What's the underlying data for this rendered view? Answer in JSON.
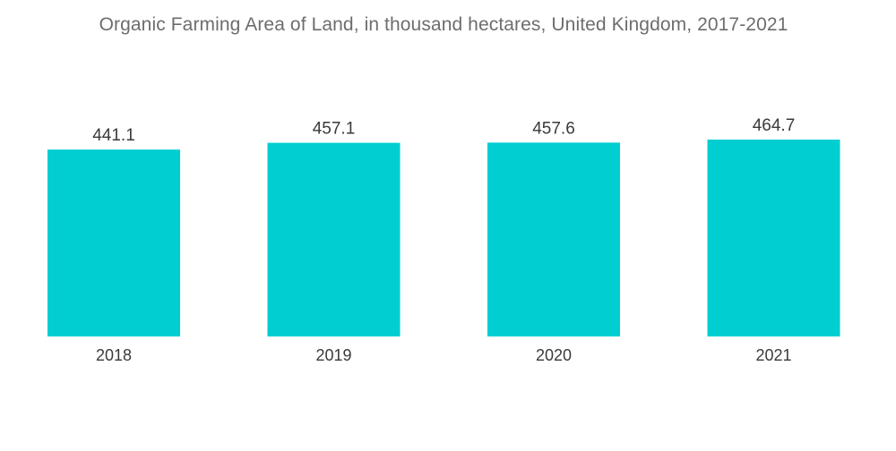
{
  "chart_data": {
    "type": "bar",
    "title": "Organic Farming Area of Land, in thousand hectares, United Kingdom, 2017-2021",
    "categories": [
      "2018",
      "2019",
      "2020",
      "2021"
    ],
    "values": [
      441.1,
      457.1,
      457.6,
      464.7
    ],
    "data_labels": [
      "441.1",
      "457.1",
      "457.6",
      "464.7"
    ],
    "xlabel": "",
    "ylabel": "",
    "ylim": [
      0,
      464.7
    ],
    "grid": false,
    "legend": "none",
    "bar_color": "#00ced1"
  }
}
